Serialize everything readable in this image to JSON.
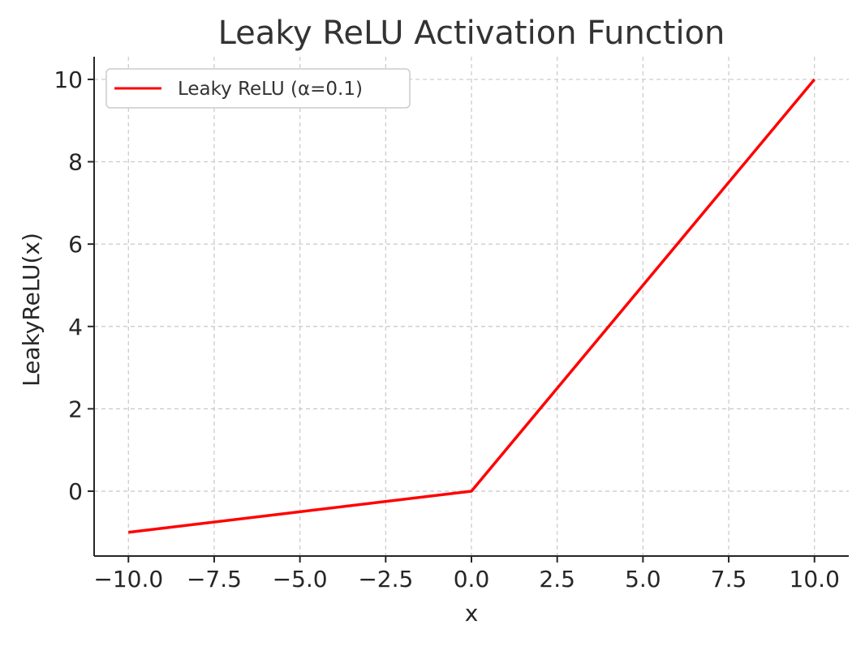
{
  "chart_data": {
    "type": "line",
    "title": "Leaky ReLU Activation Function",
    "xlabel": "x",
    "ylabel": "LeakyReLU(x)",
    "xlim": [
      -11,
      11
    ],
    "ylim": [
      -1.575,
      10.55
    ],
    "xticks": [
      -10.0,
      -7.5,
      -5.0,
      -2.5,
      0.0,
      2.5,
      5.0,
      7.5,
      10.0
    ],
    "xtick_labels": [
      "−10.0",
      "−7.5",
      "−5.0",
      "−2.5",
      "0.0",
      "2.5",
      "5.0",
      "7.5",
      "10.0"
    ],
    "yticks": [
      0,
      2,
      4,
      6,
      8,
      10
    ],
    "ytick_labels": [
      "0",
      "2",
      "4",
      "6",
      "8",
      "10"
    ],
    "grid": true,
    "legend_position": "top-left",
    "series": [
      {
        "name": "Leaky ReLU (α=0.1)",
        "color": "#ff0000",
        "x": [
          -10,
          0,
          10
        ],
        "y": [
          -1,
          0,
          10
        ]
      }
    ]
  }
}
